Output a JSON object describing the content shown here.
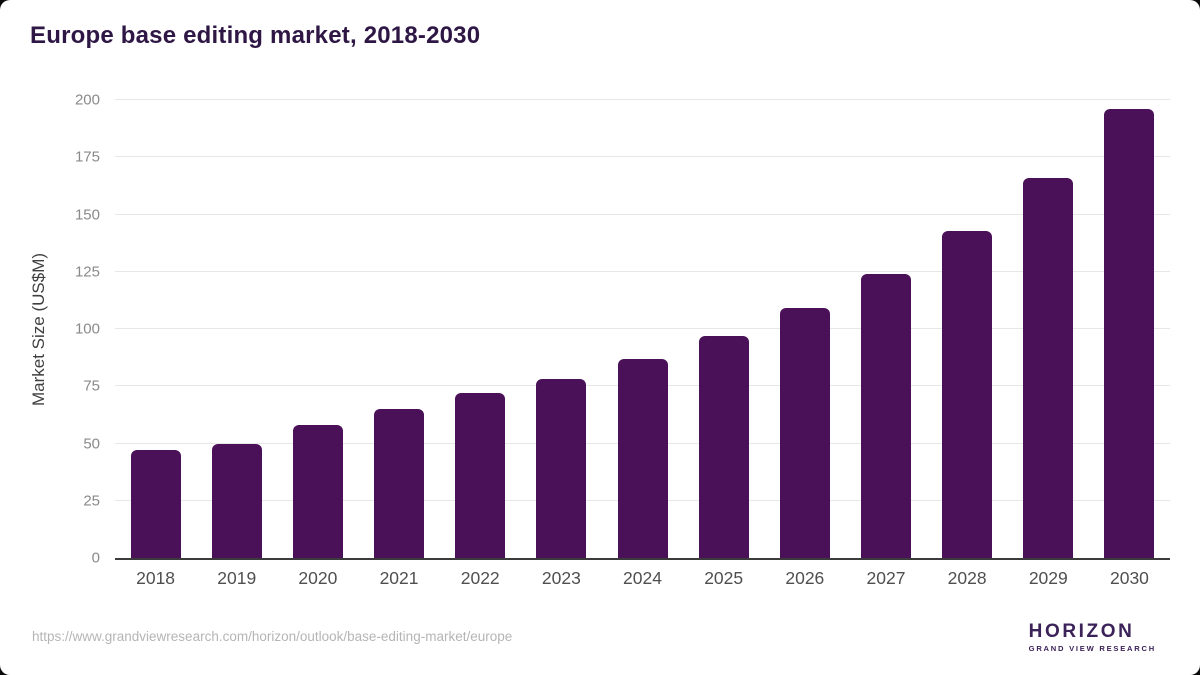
{
  "page": {
    "title": "Europe base editing market, 2018-2030",
    "source_url": "https://www.grandviewresearch.com/horizon/outlook/base-editing-market/europe"
  },
  "chart_data": {
    "type": "bar",
    "title": "Europe base editing market, 2018-2030",
    "categories": [
      "2018",
      "2019",
      "2020",
      "2021",
      "2022",
      "2023",
      "2024",
      "2025",
      "2026",
      "2027",
      "2028",
      "2029",
      "2030"
    ],
    "values": [
      47,
      50,
      58,
      65,
      72,
      78,
      87,
      97,
      109,
      124,
      143,
      166,
      196
    ],
    "xlabel": "",
    "ylabel": "Market Size (US$M)",
    "ylim": [
      0,
      200
    ],
    "ytick_step": 25,
    "grid": true,
    "legend": "none",
    "bar_color": "#4a1158"
  },
  "branding": {
    "wordmark": "HORIZON",
    "subtitle": "GRAND VIEW RESEARCH",
    "brand_purple": "#2e1a47",
    "brand_blue": "#56c1e8"
  }
}
